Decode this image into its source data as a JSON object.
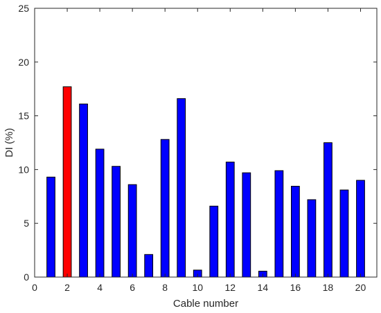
{
  "chart_data": {
    "type": "bar",
    "title": "",
    "xlabel": "Cable number",
    "ylabel": "DI (%)",
    "xlim": [
      0,
      21
    ],
    "ylim": [
      0,
      25
    ],
    "xticks": [
      0,
      2,
      4,
      6,
      8,
      10,
      12,
      14,
      16,
      18,
      20
    ],
    "yticks": [
      0,
      5,
      10,
      15,
      20,
      25
    ],
    "grid": false,
    "legend": "none",
    "categories": [
      1,
      2,
      3,
      4,
      5,
      6,
      7,
      8,
      9,
      10,
      11,
      12,
      13,
      14,
      15,
      16,
      17,
      18,
      19,
      20
    ],
    "values": [
      9.3,
      17.7,
      16.1,
      11.9,
      10.3,
      8.6,
      2.1,
      12.8,
      16.6,
      0.65,
      6.6,
      10.7,
      9.7,
      0.55,
      9.9,
      8.45,
      7.2,
      12.5,
      8.1,
      9.0
    ],
    "highlight_category": 2,
    "colors": {
      "bar": "#0000ff",
      "highlight": "#ff0000",
      "bar_edge": "#000000",
      "axis": "#262626"
    }
  }
}
